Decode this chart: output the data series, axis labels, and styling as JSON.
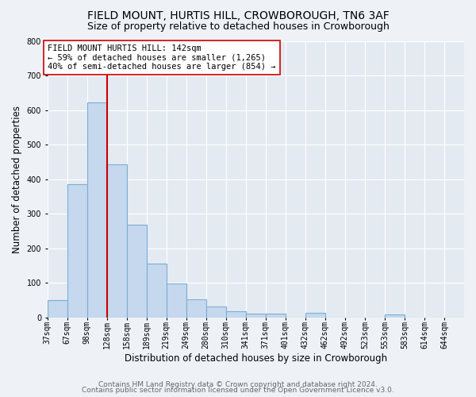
{
  "title": "FIELD MOUNT, HURTIS HILL, CROWBOROUGH, TN6 3AF",
  "subtitle": "Size of property relative to detached houses in Crowborough",
  "xlabel": "Distribution of detached houses by size in Crowborough",
  "ylabel": "Number of detached properties",
  "categories": [
    "37sqm",
    "67sqm",
    "98sqm",
    "128sqm",
    "158sqm",
    "189sqm",
    "219sqm",
    "249sqm",
    "280sqm",
    "310sqm",
    "341sqm",
    "371sqm",
    "401sqm",
    "432sqm",
    "462sqm",
    "492sqm",
    "523sqm",
    "553sqm",
    "583sqm",
    "614sqm",
    "644sqm"
  ],
  "values": [
    50,
    385,
    623,
    442,
    267,
    156,
    98,
    52,
    30,
    17,
    10,
    10,
    0,
    13,
    0,
    0,
    0,
    8,
    0,
    0,
    0
  ],
  "bar_color": "#c5d8ed",
  "bar_edge_color": "#7bafd4",
  "vline_x": 3,
  "vline_color": "#cc0000",
  "annotation_title": "FIELD MOUNT HURTIS HILL: 142sqm",
  "annotation_line1": "← 59% of detached houses are smaller (1,265)",
  "annotation_line2": "40% of semi-detached houses are larger (854) →",
  "annotation_box_color": "#ffffff",
  "annotation_box_edge": "#cc0000",
  "ylim": [
    0,
    800
  ],
  "yticks": [
    0,
    100,
    200,
    300,
    400,
    500,
    600,
    700,
    800
  ],
  "footer1": "Contains HM Land Registry data © Crown copyright and database right 2024.",
  "footer2": "Contains public sector information licensed under the Open Government Licence v3.0.",
  "bg_color": "#eef2f7",
  "plot_bg_color": "#e4eaf2",
  "grid_color": "#ffffff",
  "title_fontsize": 10,
  "subtitle_fontsize": 9,
  "label_fontsize": 8.5,
  "tick_fontsize": 7,
  "footer_fontsize": 6.5,
  "annot_fontsize": 7.5
}
